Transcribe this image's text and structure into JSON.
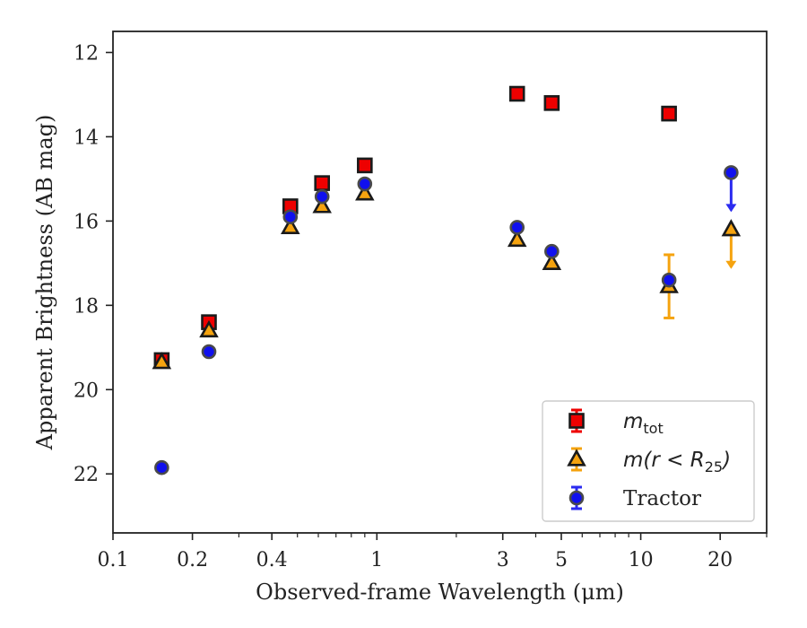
{
  "chart_data": {
    "type": "scatter",
    "xlabel": "Observed-frame Wavelength (μm)",
    "ylabel": "Apparent Brightness (AB mag)",
    "xscale": "log",
    "yinverted": true,
    "xlim": [
      0.1,
      30
    ],
    "ylim": [
      23.4,
      11.5
    ],
    "xticks": [
      {
        "value": 0.1,
        "label": "0.1"
      },
      {
        "value": 0.2,
        "label": "0.2"
      },
      {
        "value": 0.4,
        "label": "0.4"
      },
      {
        "value": 1,
        "label": "1"
      },
      {
        "value": 3,
        "label": "3"
      },
      {
        "value": 5,
        "label": "5"
      },
      {
        "value": 10,
        "label": "10"
      },
      {
        "value": 20,
        "label": "20"
      }
    ],
    "yticks": [
      {
        "value": 12,
        "label": "12"
      },
      {
        "value": 14,
        "label": "14"
      },
      {
        "value": 16,
        "label": "16"
      },
      {
        "value": 18,
        "label": "18"
      },
      {
        "value": 20,
        "label": "20"
      },
      {
        "value": 22,
        "label": "22"
      }
    ],
    "grid": false,
    "legend_position": "bottom-right",
    "series": [
      {
        "name": "m_tot",
        "legend_label": {
          "base": "m",
          "sub": "tot"
        },
        "marker": "square",
        "color": "#ee0000",
        "points": [
          {
            "x": 0.153,
            "y": 19.3,
            "err": 0.1
          },
          {
            "x": 0.231,
            "y": 18.4,
            "err": 0.1
          },
          {
            "x": 0.47,
            "y": 15.65
          },
          {
            "x": 0.62,
            "y": 15.1
          },
          {
            "x": 0.9,
            "y": 14.68
          },
          {
            "x": 3.4,
            "y": 12.98
          },
          {
            "x": 4.6,
            "y": 13.2
          },
          {
            "x": 12.8,
            "y": 13.45
          }
        ]
      },
      {
        "name": "m(r < R_25)",
        "legend_label": {
          "base": "m(r < R",
          "sub": "25",
          "tail": ")"
        },
        "marker": "triangle",
        "color": "#f5a30f",
        "points": [
          {
            "x": 0.153,
            "y": 19.35
          },
          {
            "x": 0.231,
            "y": 18.6
          },
          {
            "x": 0.47,
            "y": 16.15
          },
          {
            "x": 0.62,
            "y": 15.65
          },
          {
            "x": 0.9,
            "y": 15.35
          },
          {
            "x": 3.4,
            "y": 16.45
          },
          {
            "x": 4.6,
            "y": 17.0
          },
          {
            "x": 12.8,
            "y": 17.55,
            "err": 0.75
          },
          {
            "x": 22.0,
            "y": 16.2,
            "upper_limit": true
          }
        ]
      },
      {
        "name": "Tractor",
        "legend_label": {
          "base": "Tractor"
        },
        "marker": "circle",
        "color": "#1010ee",
        "points": [
          {
            "x": 0.153,
            "y": 21.85
          },
          {
            "x": 0.231,
            "y": 19.1
          },
          {
            "x": 0.47,
            "y": 15.9
          },
          {
            "x": 0.62,
            "y": 15.42
          },
          {
            "x": 0.9,
            "y": 15.12
          },
          {
            "x": 3.4,
            "y": 16.15
          },
          {
            "x": 4.6,
            "y": 16.72
          },
          {
            "x": 12.8,
            "y": 17.4
          },
          {
            "x": 22.0,
            "y": 14.85,
            "upper_limit": true
          }
        ]
      }
    ]
  }
}
